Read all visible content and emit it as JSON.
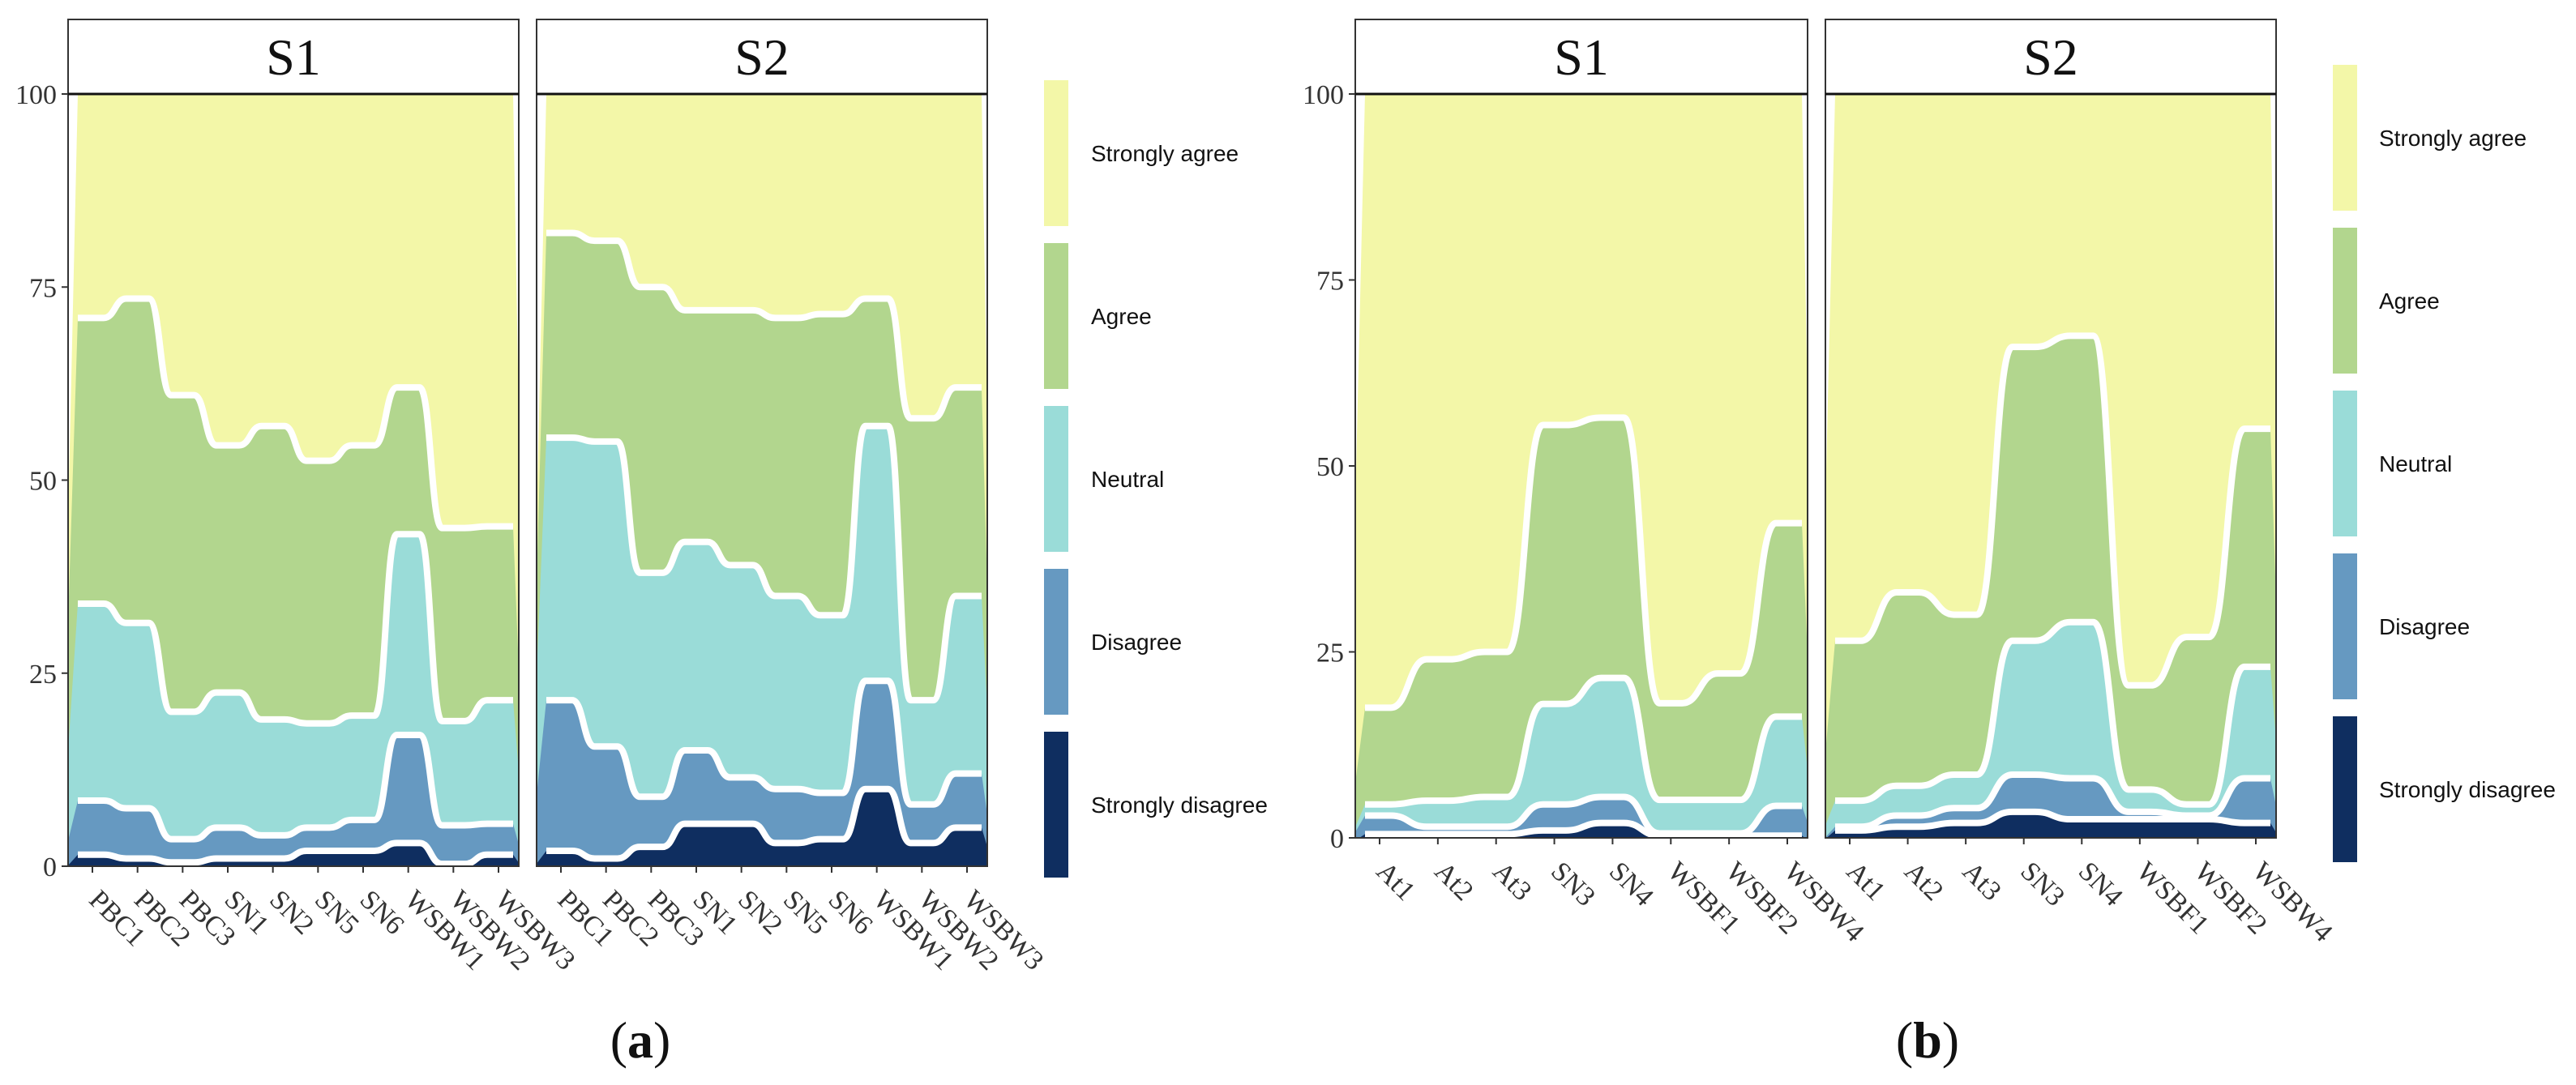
{
  "colors": {
    "Strongly agree": "#f3f7a8",
    "Agree": "#b2d68e",
    "Neutral": "#9adcd8",
    "Disagree": "#6699c1",
    "Strongly disagree": "#0f2e60"
  },
  "panel_labels": {
    "a": "a",
    "b": "b"
  },
  "chart_data": [
    {
      "type": "area",
      "id": "a",
      "panel_label": "a",
      "ylim": [
        0,
        100
      ],
      "yticks": [
        "0",
        "25",
        "50",
        "75",
        "100"
      ],
      "legend": [
        "Strongly agree",
        "Agree",
        "Neutral",
        "Disagree",
        "Strongly disagree"
      ],
      "legend_position": "right",
      "facets": [
        {
          "title": "S1",
          "categories": [
            "PBC1",
            "PBC2",
            "PBC3",
            "SN1",
            "SN2",
            "SN5",
            "SN6",
            "WSBW1",
            "WSBW2",
            "WSBW3"
          ],
          "series": [
            {
              "name": "Strongly disagree",
              "values": [
                1.5,
                1,
                0.5,
                1,
                1,
                2,
                2,
                3,
                0.3,
                1.5
              ]
            },
            {
              "name": "Disagree",
              "values": [
                7,
                6.5,
                3,
                4,
                3,
                3,
                4,
                14,
                5,
                4
              ]
            },
            {
              "name": "Neutral",
              "values": [
                25.5,
                24,
                16.5,
                17.5,
                15,
                13.5,
                13.5,
                26,
                13.5,
                16
              ]
            },
            {
              "name": "Agree",
              "values": [
                37,
                42,
                41,
                32,
                38,
                34,
                35,
                19,
                25,
                22.5
              ]
            },
            {
              "name": "Strongly agree",
              "values": [
                29,
                26.5,
                39,
                45.5,
                43,
                47.5,
                45.5,
                38,
                56.2,
                56
              ]
            }
          ]
        },
        {
          "title": "S2",
          "categories": [
            "PBC1",
            "PBC2",
            "PBC3",
            "SN1",
            "SN2",
            "SN5",
            "SN6",
            "WSBW1",
            "WSBW2",
            "WSBW3"
          ],
          "series": [
            {
              "name": "Strongly disagree",
              "values": [
                2,
                1,
                2.5,
                5.5,
                5.5,
                3,
                3.5,
                10,
                3,
                5
              ]
            },
            {
              "name": "Disagree",
              "values": [
                19.5,
                14.5,
                6.5,
                9.5,
                6,
                7,
                6,
                14,
                5,
                7
              ]
            },
            {
              "name": "Neutral",
              "values": [
                34,
                39.5,
                29,
                27,
                27.5,
                25,
                23,
                33,
                13.5,
                23
              ]
            },
            {
              "name": "Agree",
              "values": [
                26.5,
                26,
                37,
                30,
                33,
                36,
                39,
                16.5,
                36.5,
                27
              ]
            },
            {
              "name": "Strongly agree",
              "values": [
                18,
                19,
                25,
                28,
                28,
                29,
                28.5,
                26.5,
                42,
                38
              ]
            }
          ]
        }
      ]
    },
    {
      "type": "area",
      "id": "b",
      "panel_label": "b",
      "ylim": [
        0,
        100
      ],
      "yticks": [
        "0",
        "25",
        "50",
        "75",
        "100"
      ],
      "legend": [
        "Strongly agree",
        "Agree",
        "Neutral",
        "Disagree",
        "Strongly disagree"
      ],
      "legend_position": "right",
      "facets": [
        {
          "title": "S1",
          "categories": [
            "At1",
            "At2",
            "At3",
            "SN3",
            "SN4",
            "WSBF1",
            "WSBF2",
            "WSBW4"
          ],
          "series": [
            {
              "name": "Strongly disagree",
              "values": [
                0.5,
                0.5,
                0.5,
                1,
                2,
                0.3,
                0.3,
                0.3
              ]
            },
            {
              "name": "Disagree",
              "values": [
                2.5,
                1,
                1,
                3.5,
                3.5,
                0.3,
                0.3,
                4
              ]
            },
            {
              "name": "Neutral",
              "values": [
                1.5,
                3.5,
                4,
                13.5,
                16,
                4.5,
                4.5,
                12
              ]
            },
            {
              "name": "Agree",
              "values": [
                13,
                19,
                19.5,
                37.5,
                35,
                13,
                17,
                26
              ]
            },
            {
              "name": "Strongly agree",
              "values": [
                82.5,
                76,
                75,
                44.5,
                43.5,
                81.9,
                77.9,
                57.7
              ]
            }
          ]
        },
        {
          "title": "S2",
          "categories": [
            "At1",
            "At2",
            "At3",
            "SN3",
            "SN4",
            "WSBF1",
            "WSBF2",
            "WSBW4"
          ],
          "series": [
            {
              "name": "Strongly disagree",
              "values": [
                1,
                1.5,
                2,
                3.5,
                2.5,
                2.5,
                2.5,
                2
              ]
            },
            {
              "name": "Disagree",
              "values": [
                0.5,
                1.5,
                2,
                5,
                5.5,
                1,
                0.5,
                6
              ]
            },
            {
              "name": "Neutral",
              "values": [
                3.5,
                4,
                4.5,
                18,
                21,
                3,
                1.5,
                15
              ]
            },
            {
              "name": "Agree",
              "values": [
                21.5,
                26,
                21.5,
                39.5,
                38.5,
                14,
                22.5,
                32
              ]
            },
            {
              "name": "Strongly agree",
              "values": [
                73.5,
                67,
                70,
                34,
                32.5,
                79.5,
                73,
                45
              ]
            }
          ]
        }
      ]
    }
  ]
}
